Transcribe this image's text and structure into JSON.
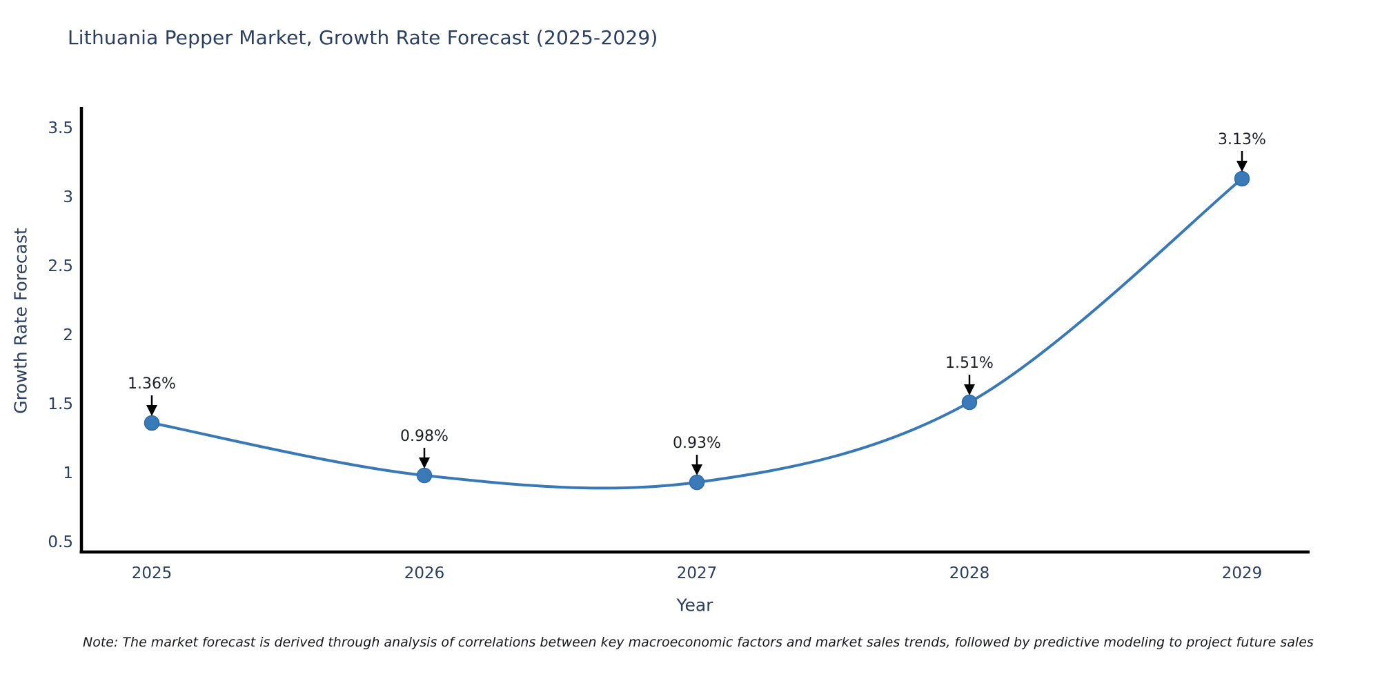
{
  "note": "Note: The market forecast is derived through analysis of correlations between key macroeconomic factors and market sales trends, followed by predictive modeling to project future sales",
  "chart_data": {
    "type": "line",
    "title": "Lithuania Pepper Market, Growth Rate Forecast (2025-2029)",
    "xlabel": "Year",
    "ylabel": "Growth Rate Forecast",
    "categories": [
      "2025",
      "2026",
      "2027",
      "2028",
      "2029"
    ],
    "series": [
      {
        "name": "Growth Rate Forecast",
        "values": [
          1.36,
          0.98,
          0.93,
          1.51,
          3.13
        ]
      }
    ],
    "point_labels": [
      "1.36%",
      "0.98%",
      "0.93%",
      "1.51%",
      "3.13%"
    ],
    "ylim": [
      0.5,
      3.5
    ],
    "yticks": [
      0.5,
      1,
      1.5,
      2,
      2.5,
      3,
      3.5
    ],
    "grid": false,
    "legend_position": "none",
    "curve_style": "smooth-spline",
    "colors": {
      "line": "#3878b5",
      "marker_fill": "#3a7ab8",
      "marker_edge": "#2f6ba8",
      "axis": "#000000",
      "axis_text": "#2a3f5f",
      "annotation_text": "#1c1f26",
      "annotation_arrow": "#000000",
      "background": "#ffffff"
    }
  }
}
